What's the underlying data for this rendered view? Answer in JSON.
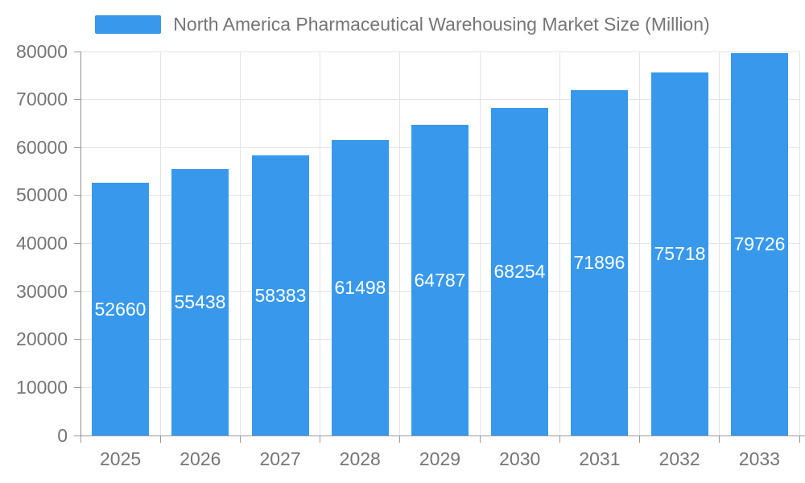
{
  "legend": {
    "label": "North America Pharmaceutical Warehousing Market Size (Million)"
  },
  "colors": {
    "bar": "#3899EC",
    "axis_line": "#999999",
    "grid_line": "#E3E3E3",
    "axis_text": "#757575",
    "value_text": "#FFFFFF"
  },
  "chart_data": {
    "type": "bar",
    "title": "North America Pharmaceutical Warehousing Market Size (Million)",
    "categories": [
      "2025",
      "2026",
      "2027",
      "2028",
      "2029",
      "2030",
      "2031",
      "2032",
      "2033"
    ],
    "values": [
      52660,
      55438,
      58383,
      61498,
      64787,
      68254,
      71896,
      75718,
      79726
    ],
    "value_labels": [
      "52660",
      "55438",
      "58383",
      "61498",
      "64787",
      "68254",
      "71896",
      "75718",
      "79726"
    ],
    "value_label_position": "inside-middle",
    "xlabel": "",
    "ylabel": "",
    "ylim": [
      0,
      80000
    ],
    "ytick_step": 10000,
    "yticks": [
      "0",
      "10000",
      "20000",
      "30000",
      "40000",
      "50000",
      "60000",
      "70000",
      "80000"
    ],
    "grid": "on",
    "legend_position": "top-center"
  }
}
